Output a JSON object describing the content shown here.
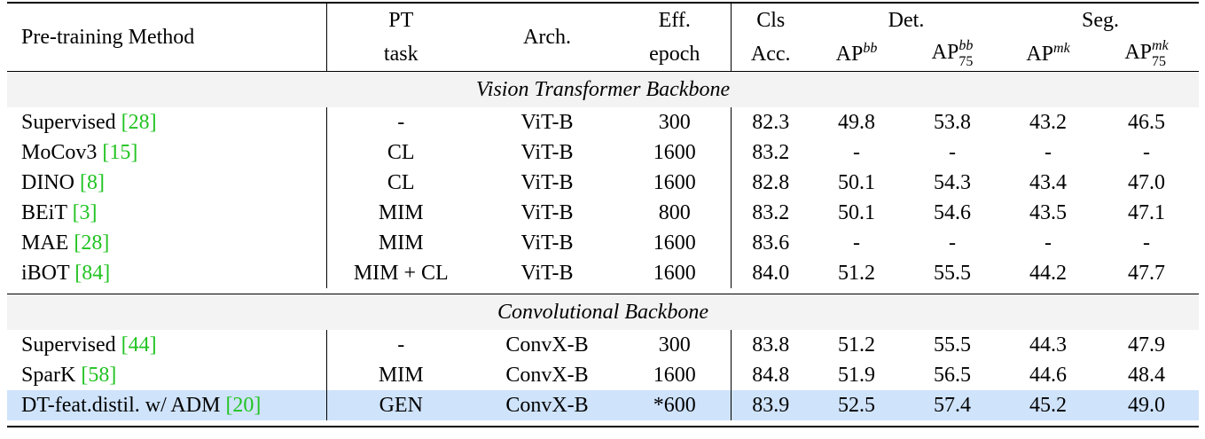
{
  "header": {
    "method": "Pre-training Method",
    "pt_task_line1": "PT",
    "pt_task_line2": "task",
    "arch": "Arch.",
    "eff_line1": "Eff.",
    "eff_line2": "epoch",
    "cls_line1": "Cls",
    "cls_line2": "Acc.",
    "det_group": "Det.",
    "seg_group": "Seg.",
    "ap": "AP",
    "bb": "bb",
    "mk": "mk",
    "sub75": "75"
  },
  "sections": [
    {
      "title": "Vision Transformer Backbone",
      "rows": [
        {
          "method": "Supervised",
          "cite": "[28]",
          "task": "-",
          "arch": "ViT-B",
          "epoch": "300",
          "cls": "82.3",
          "apbb": "49.8",
          "apbb75": "53.8",
          "apmk": "43.2",
          "apmk75": "46.5"
        },
        {
          "method": "MoCov3",
          "cite": "[15]",
          "task": "CL",
          "arch": "ViT-B",
          "epoch": "1600",
          "cls": "83.2",
          "apbb": "-",
          "apbb75": "-",
          "apmk": "-",
          "apmk75": "-"
        },
        {
          "method": "DINO",
          "cite": "[8]",
          "task": "CL",
          "arch": "ViT-B",
          "epoch": "1600",
          "cls": "82.8",
          "apbb": "50.1",
          "apbb75": "54.3",
          "apmk": "43.4",
          "apmk75": "47.0"
        },
        {
          "method": "BEiT",
          "cite": "[3]",
          "task": "MIM",
          "arch": "ViT-B",
          "epoch": "800",
          "cls": "83.2",
          "apbb": "50.1",
          "apbb75": "54.6",
          "apmk": "43.5",
          "apmk75": "47.1"
        },
        {
          "method": "MAE",
          "cite": "[28]",
          "task": "MIM",
          "arch": "ViT-B",
          "epoch": "1600",
          "cls": "83.6",
          "apbb": "-",
          "apbb75": "-",
          "apmk": "-",
          "apmk75": "-"
        },
        {
          "method": "iBOT",
          "cite": "[84]",
          "task": "MIM + CL",
          "arch": "ViT-B",
          "epoch": "1600",
          "cls": "84.0",
          "apbb": "51.2",
          "apbb75": "55.5",
          "apmk": "44.2",
          "apmk75": "47.7"
        }
      ]
    },
    {
      "title": "Convolutional Backbone",
      "rows": [
        {
          "method": "Supervised",
          "cite": "[44]",
          "task": "-",
          "arch": "ConvX-B",
          "epoch": "300",
          "cls": "83.8",
          "apbb": "51.2",
          "apbb75": "55.5",
          "apmk": "44.3",
          "apmk75": "47.9"
        },
        {
          "method": "SparK",
          "cite": "[58]",
          "task": "MIM",
          "arch": "ConvX-B",
          "epoch": "1600",
          "cls": "84.8",
          "apbb": "51.9",
          "apbb75": "56.5",
          "apmk": "44.6",
          "apmk75": "48.4"
        },
        {
          "method": "DT-feat.distil. w/ ADM",
          "cite": "[20]",
          "task": "GEN",
          "arch": "ConvX-B",
          "epoch": "*600",
          "cls": "83.9",
          "apbb": "52.5",
          "apbb75": "57.4",
          "apmk": "45.2",
          "apmk75": "49.0"
        }
      ]
    }
  ],
  "colors": {
    "citation": "#22c322",
    "highlight_row": "#cfe3fb"
  }
}
